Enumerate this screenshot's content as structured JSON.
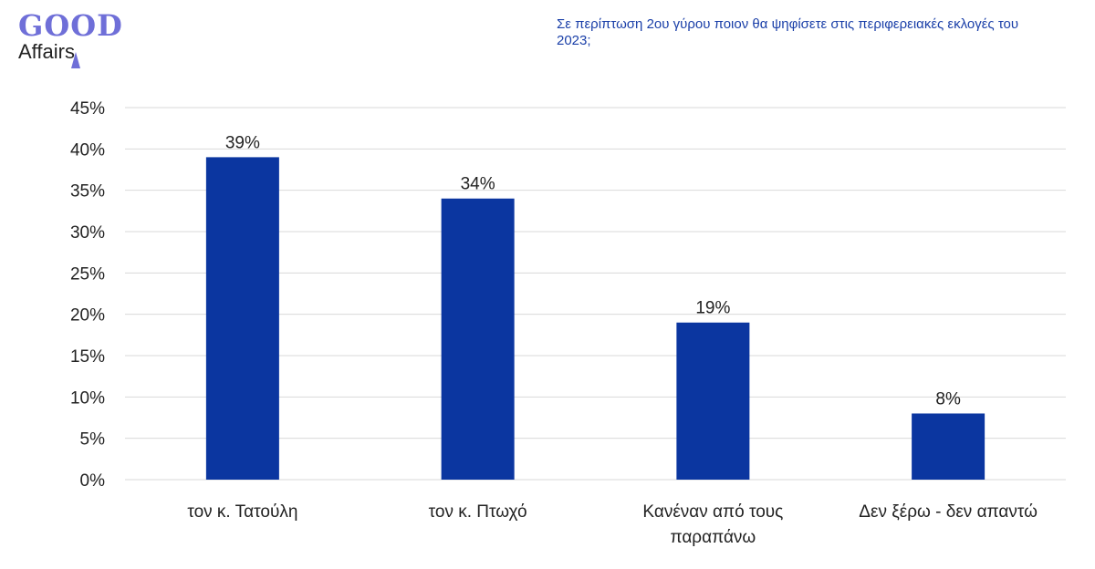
{
  "logo": {
    "good": "GOOD",
    "affairs": "Affairs"
  },
  "question": "Σε περίπτωση 2ου γύρου ποιον θα ψηφίσετε στις περιφερειακές εκλογές του 2023;",
  "colors": {
    "bar": "#0b36a0",
    "grid": "#d9d9d9",
    "axis_text": "#222222",
    "question": "#1a3fa8",
    "logo_good": "#6f6fd8"
  },
  "chart_data": {
    "type": "bar",
    "categories": [
      [
        "τον κ. Τατούλη"
      ],
      [
        "τον κ. Πτωχό"
      ],
      [
        "Κανέναν από τους",
        "παραπάνω"
      ],
      [
        "Δεν ξέρω - δεν απαντώ"
      ]
    ],
    "values": [
      39,
      34,
      19,
      8
    ],
    "data_labels": [
      "39%",
      "34%",
      "19%",
      "8%"
    ],
    "ylim": [
      0,
      45
    ],
    "yticks": [
      "0%",
      "5%",
      "10%",
      "15%",
      "20%",
      "25%",
      "30%",
      "35%",
      "40%",
      "45%"
    ],
    "grid": true,
    "legend": "none"
  }
}
